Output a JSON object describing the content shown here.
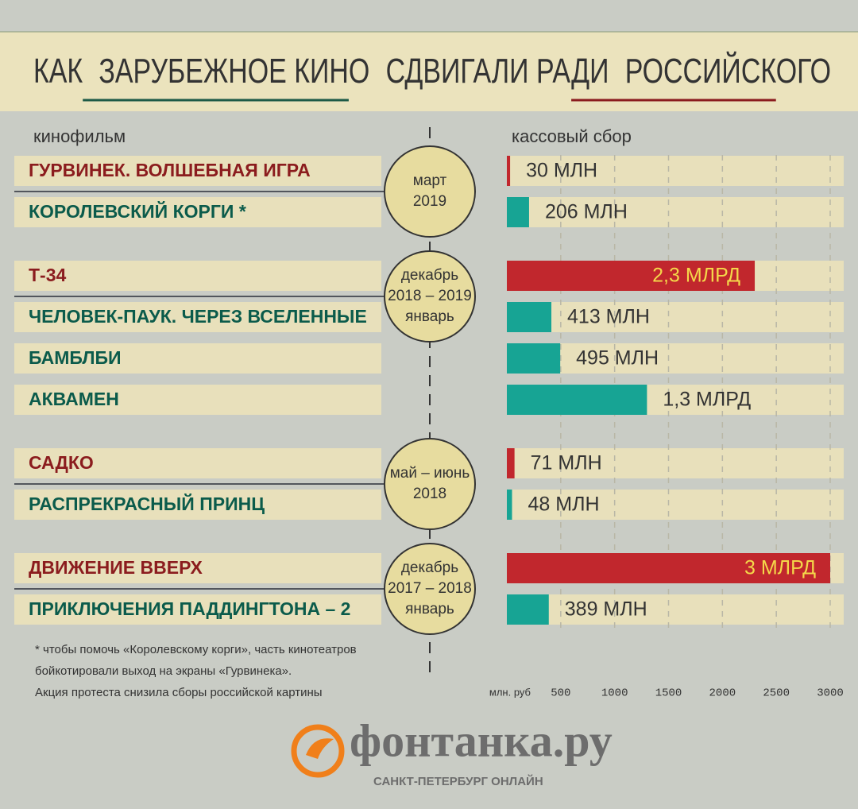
{
  "chart_data": {
    "type": "bar",
    "orientation": "horizontal",
    "title_parts": [
      "КАК",
      "ЗАРУБЕЖНОЕ КИНО",
      "СДВИГАЛИ РАДИ",
      "РОССИЙСКОГО"
    ],
    "category_label": "кинофильм",
    "value_label": "кассовый сбор",
    "x_unit": "млн. руб",
    "xlim": [
      0,
      3000
    ],
    "xticks": [
      500,
      1000,
      1500,
      2000,
      2500,
      3000
    ],
    "grid": true,
    "groups": [
      {
        "period": [
          "март",
          "2019"
        ],
        "categories": [
          "ГУРВИНЕК. ВОЛШЕБНАЯ ИГРА",
          "КОРОЛЕВСКИЙ КОРГИ *"
        ],
        "values": [
          30,
          206
        ],
        "value_labels": [
          "30 МЛН",
          "206 МЛН"
        ],
        "colors": [
          "#c1272d",
          "#17a494"
        ],
        "name_colors": [
          "#8b1c1e",
          "#0b5b4b"
        ]
      },
      {
        "period": [
          "декабрь",
          "2018 – 2019",
          "январь"
        ],
        "categories": [
          "Т-34",
          "ЧЕЛОВЕК-ПАУК. ЧЕРЕЗ ВСЕЛЕННЫЕ",
          "БАМБЛБИ",
          "АКВАМЕН"
        ],
        "values": [
          2300,
          413,
          495,
          1300
        ],
        "value_labels": [
          "2,3 МЛРД",
          "413 МЛН",
          "495 МЛН",
          "1,3 МЛРД"
        ],
        "colors": [
          "#c1272d",
          "#17a494",
          "#17a494",
          "#17a494"
        ],
        "name_colors": [
          "#8b1c1e",
          "#0b5b4b",
          "#0b5b4b",
          "#0b5b4b"
        ]
      },
      {
        "period": [
          "май – июнь",
          "2018"
        ],
        "categories": [
          "САДКО",
          "РАСПРЕКРАСНЫЙ ПРИНЦ"
        ],
        "values": [
          71,
          48
        ],
        "value_labels": [
          "71 МЛН",
          "48 МЛН"
        ],
        "colors": [
          "#c1272d",
          "#17a494"
        ],
        "name_colors": [
          "#8b1c1e",
          "#0b5b4b"
        ]
      },
      {
        "period": [
          "декабрь",
          "2017 – 2018",
          "январь"
        ],
        "categories": [
          "ДВИЖЕНИЕ ВВЕРХ",
          "ПРИКЛЮЧЕНИЯ ПАДДИНГТОНА – 2"
        ],
        "values": [
          3000,
          389
        ],
        "value_labels": [
          "3 МЛРД",
          "389 МЛН"
        ],
        "colors": [
          "#c1272d",
          "#17a494"
        ],
        "name_colors": [
          "#8b1c1e",
          "#0b5b4b"
        ]
      }
    ]
  },
  "footnote": [
    "* чтобы помочь «Королевскому корги», часть кинотеатров",
    "бойкотировали выход на экраны «Гурвинека».",
    "Акция протеста снизила сборы российской картины"
  ],
  "logo": {
    "name": "фонтанка.ру",
    "tagline": "САНКТ-ПЕТЕРБУРГ ОНЛАЙН"
  }
}
